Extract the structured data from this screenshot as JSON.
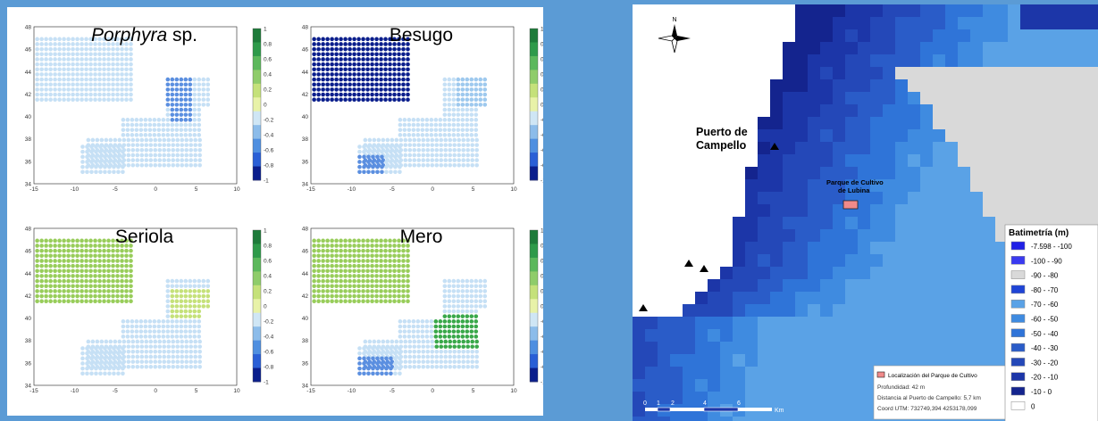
{
  "left_panel": {
    "plots": [
      {
        "key": "porphyra",
        "title_italic": "Porphyra",
        "title_rest": " sp."
      },
      {
        "key": "besugo",
        "title_italic": "",
        "title_rest": "Besugo"
      },
      {
        "key": "seriola",
        "title_italic": "",
        "title_rest": "Seriola"
      },
      {
        "key": "mero",
        "title_italic": "",
        "title_rest": "Mero"
      }
    ],
    "y_ticks": [
      "48",
      "46",
      "44",
      "42",
      "40",
      "38",
      "36",
      "34"
    ],
    "x_ticks": [
      "-15",
      "-10",
      "-5",
      "0",
      "5",
      "10"
    ],
    "colorbar_ticks": [
      "1",
      "0.8",
      "0.6",
      "0.4",
      "0.2",
      "0",
      "-0.2",
      "-0.4",
      "-0.6",
      "-0.8",
      "-1"
    ],
    "colorbar_colors": [
      "#1e7b3a",
      "#2e9a4a",
      "#5cb85c",
      "#8fcc6a",
      "#c5e17a",
      "#e8f2a8",
      "#cfe6f5",
      "#8cbcea",
      "#4f8fe0",
      "#2a5fd6",
      "#0a1e8c"
    ],
    "plot_colors": {
      "pale_blue": "#c6e0f5",
      "light_blue": "#9ec9ee",
      "mid_blue": "#5b8fe0",
      "dark_navy": "#0a1e8c",
      "pale_green": "#c5e17a",
      "light_green": "#98cd5a",
      "dark_green": "#3aa84a"
    }
  },
  "right_panel": {
    "north_label": "N",
    "port_label_line1": "Puerto de",
    "port_label_line2": "Campello",
    "farm_label_line1": "Parque de Cultivo",
    "farm_label_line2": "de Lubina",
    "scale_numbers": [
      "0",
      "1",
      "2",
      "4",
      "6"
    ],
    "scale_unit": "Km",
    "info_box": {
      "title": "Localización del Parque de Cultivo",
      "depth": "Profundidad: 42 m",
      "distance": "Distancia al Puerto de Campello: 5,7 km",
      "coords": "Coord UTM: 732749,394  4253178,099"
    },
    "legend": {
      "title": "Batimetría (m)",
      "items": [
        {
          "label": "-7.598 - -100",
          "color": "#2020e6"
        },
        {
          "label": "-100 - -90",
          "color": "#3a3af0"
        },
        {
          "label": "-90 - -80",
          "color": "#d9d9d9"
        },
        {
          "label": "-80 - -70",
          "color": "#1f44d6"
        },
        {
          "label": "-70 - -60",
          "color": "#5aa2e6"
        },
        {
          "label": "-60 - -50",
          "color": "#3f8be0"
        },
        {
          "label": "-50 - -40",
          "color": "#2f74d8"
        },
        {
          "label": "-40 - -30",
          "color": "#2a5cc8"
        },
        {
          "label": "-30 - -20",
          "color": "#2448b8"
        },
        {
          "label": "-20 - -10",
          "color": "#1c36a8"
        },
        {
          "label": "-10 - 0",
          "color": "#14248e"
        },
        {
          "label": "0",
          "color": "#ffffff"
        }
      ]
    },
    "map_colors": {
      "band_shallow": "#14248e",
      "band_2": "#1c36a8",
      "band_3": "#2448b8",
      "band_4": "#2a5cc8",
      "band_5": "#2f74d8",
      "band_6": "#3f8be0",
      "band_7": "#5aa2e6",
      "deep_gray": "#d9d9d9",
      "farm": "#f08a8a"
    }
  }
}
